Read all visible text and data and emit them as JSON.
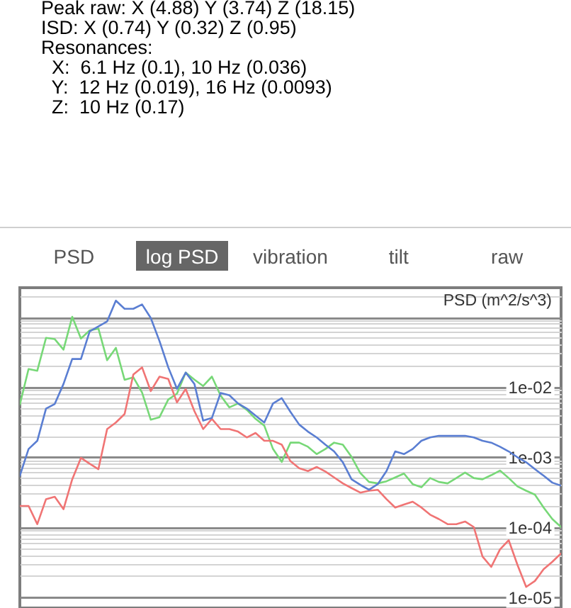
{
  "chart_data": [
    {
      "type": "other",
      "annotations": [
        "Peak raw: X (4.88) Y (3.74) Z (18.15)",
        "ISD: X (0.74) Y (0.32) Z (0.95)",
        "Resonances:",
        "  X:  6.1 Hz (0.1), 10 Hz (0.036)",
        "  Y:  12 Hz (0.019), 16 Hz (0.0093)",
        "  Z:  10 Hz (0.17)"
      ]
    },
    {
      "type": "line",
      "title": "log PSD",
      "annotations": [
        "PSD",
        "vibration",
        "tilt",
        "raw"
      ],
      "ylabel": "PSD (m^2/s^3)",
      "log": "y",
      "grid": "y",
      "tick_labels": "y",
      "categories": [
        null,
        null,
        null,
        null,
        null,
        null,
        null,
        null,
        null,
        null,
        null,
        null,
        null,
        null,
        null,
        null,
        null,
        null,
        null,
        null,
        null,
        null,
        null,
        null,
        null,
        null,
        null,
        null,
        null,
        null,
        null,
        null,
        null,
        null,
        null,
        null,
        null,
        null,
        null,
        null,
        null,
        null,
        null,
        null,
        null,
        null,
        null,
        null,
        null,
        null,
        null,
        null,
        null,
        null,
        null,
        null,
        null,
        null,
        null,
        null,
        null,
        null,
        null
      ],
      "ylim": [
        7e-06,
        0.26
      ],
      "yticks": [
        {
          "value": 1e-05,
          "label": "1e-05"
        },
        {
          "value": 2e-05,
          "label": null
        },
        {
          "value": 3e-05,
          "label": null
        },
        {
          "value": 4e-05,
          "label": null
        },
        {
          "value": 5e-05,
          "label": null
        },
        {
          "value": 6e-05,
          "label": null
        },
        {
          "value": 7e-05,
          "label": null
        },
        {
          "value": 8e-05,
          "label": null
        },
        {
          "value": 9e-05,
          "label": null
        },
        {
          "value": 0.0001,
          "label": "1e-04"
        },
        {
          "value": 0.0002,
          "label": null
        },
        {
          "value": 0.0003,
          "label": null
        },
        {
          "value": 0.0004,
          "label": null
        },
        {
          "value": 0.0005,
          "label": null
        },
        {
          "value": 0.0006,
          "label": null
        },
        {
          "value": 0.0007,
          "label": null
        },
        {
          "value": 0.0008,
          "label": null
        },
        {
          "value": 0.0009,
          "label": null
        },
        {
          "value": 0.001,
          "label": "1e-03"
        },
        {
          "value": 0.002,
          "label": null
        },
        {
          "value": 0.003,
          "label": null
        },
        {
          "value": 0.004,
          "label": null
        },
        {
          "value": 0.005,
          "label": null
        },
        {
          "value": 0.006,
          "label": null
        },
        {
          "value": 0.007,
          "label": null
        },
        {
          "value": 0.008,
          "label": null
        },
        {
          "value": 0.009,
          "label": null
        },
        {
          "value": 0.01,
          "label": "1e-02"
        },
        {
          "value": 0.02,
          "label": null
        },
        {
          "value": 0.03,
          "label": null
        },
        {
          "value": 0.04,
          "label": null
        },
        {
          "value": 0.05,
          "label": null
        },
        {
          "value": 0.06,
          "label": null
        },
        {
          "value": 0.07,
          "label": null
        },
        {
          "value": 0.08,
          "label": null
        },
        {
          "value": 0.09,
          "label": null
        },
        {
          "value": 0.1,
          "label": null
        },
        {
          "value": 0.2,
          "label": null
        }
      ],
      "series": [
        {
          "color": "#77d877",
          "values": [
            0.0056,
            0.018,
            0.017,
            0.05,
            0.048,
            0.034,
            0.1,
            0.049,
            0.064,
            0.068,
            0.024,
            0.036,
            0.0126,
            0.0137,
            0.0083,
            0.0034,
            0.0037,
            0.0066,
            0.008,
            0.016,
            0.0127,
            0.0103,
            0.014,
            0.0075,
            0.0051,
            0.0058,
            0.0047,
            0.0035,
            0.0028,
            0.0013,
            0.00085,
            0.0016,
            0.0016,
            0.0014,
            0.0011,
            0.0013,
            0.0016,
            0.0015,
            0.001,
            0.00059,
            0.00044,
            0.00042,
            0.00045,
            0.00051,
            0.00058,
            0.00041,
            0.00037,
            0.0005,
            0.00044,
            0.00042,
            0.0005,
            0.0006,
            0.0005,
            0.00048,
            0.00055,
            0.00064,
            0.0005,
            0.00038,
            0.00033,
            0.00029,
            0.00019,
            0.00013,
            0.0001
          ]
        },
        {
          "color": "#f07474",
          "values": [
            0.0002,
            0.0002,
            0.00011,
            0.00025,
            0.00027,
            0.00018,
            0.00048,
            0.00097,
            0.0008,
            0.00067,
            0.0025,
            0.0031,
            0.0041,
            0.015,
            0.019,
            0.0087,
            0.014,
            0.013,
            0.006,
            0.0093,
            0.0045,
            0.0025,
            0.0035,
            0.0025,
            0.0025,
            0.0023,
            0.0019,
            0.0022,
            0.0017,
            0.0017,
            0.0015,
            0.00087,
            0.00069,
            0.00063,
            0.00072,
            0.00062,
            0.00051,
            0.00042,
            0.00036,
            0.00031,
            0.00033,
            0.00034,
            0.00025,
            0.00019,
            0.00021,
            0.00023,
            0.00019,
            0.00015,
            0.00013,
            0.00011,
            0.00011,
            0.00012,
            0.0001,
            3.8e-05,
            2.7e-05,
            4.8e-05,
            6.5e-05,
            2.9e-05,
            1.4e-05,
            1.7e-05,
            2.5e-05,
            3.2e-05,
            4.2e-05
          ]
        },
        {
          "color": "#5a7ed2",
          "values": [
            0.00054,
            0.0013,
            0.0017,
            0.0049,
            0.0057,
            0.011,
            0.025,
            0.025,
            0.062,
            0.073,
            0.086,
            0.17,
            0.13,
            0.13,
            0.15,
            0.096,
            0.045,
            0.019,
            0.0094,
            0.016,
            0.011,
            0.0033,
            0.0036,
            0.0082,
            0.0076,
            0.0058,
            0.0049,
            0.0039,
            0.0031,
            0.0058,
            0.0069,
            0.0044,
            0.0029,
            0.0023,
            0.0019,
            0.0015,
            0.0012,
            0.00084,
            0.00048,
            0.0004,
            0.00034,
            0.00041,
            0.00063,
            0.0012,
            0.0011,
            0.0013,
            0.0017,
            0.0019,
            0.002,
            0.002,
            0.002,
            0.002,
            0.0019,
            0.0017,
            0.0016,
            0.0014,
            0.0012,
            0.00099,
            0.00084,
            0.00067,
            0.00054,
            0.00043,
            0.00039
          ]
        }
      ]
    }
  ]
}
